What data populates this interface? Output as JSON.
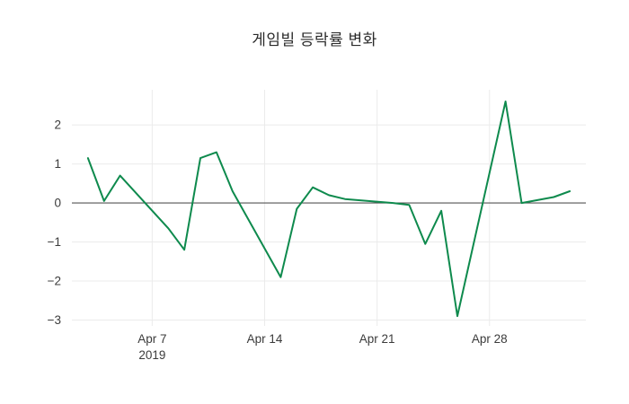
{
  "title": "게임빌 등락률 변화",
  "chart_data": {
    "type": "line",
    "title": "게임빌 등락률 변화",
    "xlabel": "",
    "ylabel": "",
    "legend": "none",
    "grid": true,
    "line_color": "#0e8a4d",
    "grid_color": "#ebebeb",
    "zero_line_color": "#555555",
    "tick_label_color": "#3b3b3b",
    "background": "#ffffff",
    "x": [
      "2019-04-03",
      "2019-04-04",
      "2019-04-05",
      "2019-04-08",
      "2019-04-09",
      "2019-04-10",
      "2019-04-11",
      "2019-04-12",
      "2019-04-15",
      "2019-04-16",
      "2019-04-17",
      "2019-04-18",
      "2019-04-19",
      "2019-04-22",
      "2019-04-23",
      "2019-04-24",
      "2019-04-25",
      "2019-04-26",
      "2019-04-29",
      "2019-04-30",
      "2019-05-02",
      "2019-05-03"
    ],
    "values": [
      1.15,
      0.05,
      0.7,
      -0.65,
      -1.2,
      1.15,
      1.3,
      0.3,
      -1.9,
      -0.15,
      0.4,
      0.2,
      0.1,
      0.0,
      -0.05,
      -1.05,
      -0.2,
      -2.9,
      2.6,
      0.0,
      0.15,
      0.3
    ],
    "x_ticks": [
      {
        "date": "2019-04-07",
        "label": "Apr 7",
        "sublabel": "2019"
      },
      {
        "date": "2019-04-14",
        "label": "Apr 14",
        "sublabel": ""
      },
      {
        "date": "2019-04-21",
        "label": "Apr 21",
        "sublabel": ""
      },
      {
        "date": "2019-04-28",
        "label": "Apr 28",
        "sublabel": ""
      }
    ],
    "y_ticks": [
      {
        "value": -3,
        "label": "−3"
      },
      {
        "value": -2,
        "label": "−2"
      },
      {
        "value": -1,
        "label": "−1"
      },
      {
        "value": 0,
        "label": "0"
      },
      {
        "value": 1,
        "label": "1"
      },
      {
        "value": 2,
        "label": "2"
      }
    ],
    "xlim": [
      "2019-04-02",
      "2019-05-04"
    ],
    "ylim": [
      -3.15,
      2.9
    ]
  }
}
